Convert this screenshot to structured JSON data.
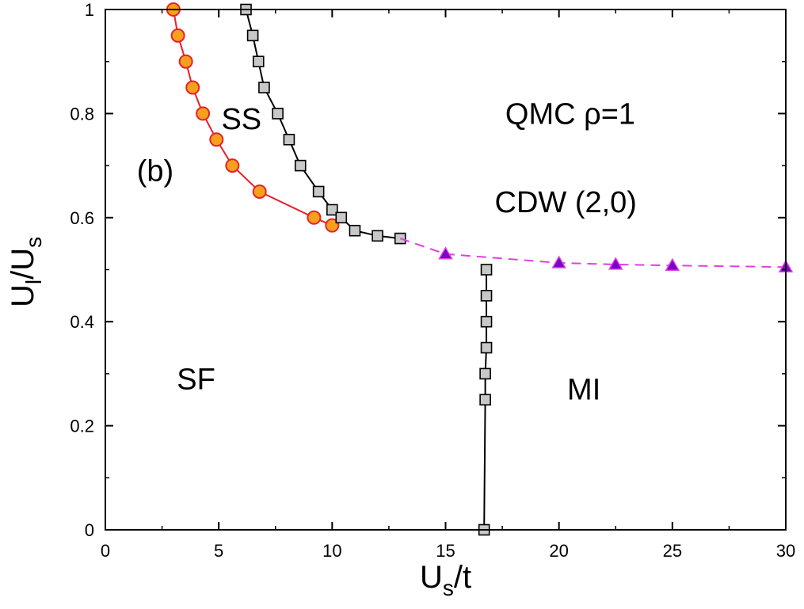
{
  "chart_data": {
    "type": "line",
    "title": "",
    "xlabel": {
      "main": "U",
      "sub": "s",
      "tail": "/t"
    },
    "ylabel": {
      "main": "U",
      "sub": "l",
      "mid": "/U",
      "sub2": "s"
    },
    "xlim": [
      0,
      30
    ],
    "ylim": [
      0,
      1
    ],
    "x_ticks": [
      0,
      5,
      10,
      15,
      20,
      25,
      30
    ],
    "y_ticks": [
      0,
      0.2,
      0.4,
      0.6,
      0.8,
      1
    ],
    "x_tick_labels": [
      "0",
      "5",
      "10",
      "15",
      "20",
      "25",
      "30"
    ],
    "y_tick_labels": [
      "0",
      "0.2",
      "0.4",
      "0.6",
      "0.8",
      "1"
    ],
    "grid": false,
    "annotations": [
      {
        "text": "QMC ρ=1",
        "x": 20.5,
        "y": 0.8
      },
      {
        "text": "CDW (2,0)",
        "x": 20.3,
        "y": 0.63
      },
      {
        "text": "SS",
        "x": 6.0,
        "y": 0.79
      },
      {
        "text": "(b)",
        "x": 2.2,
        "y": 0.69
      },
      {
        "text": "SF",
        "x": 4.0,
        "y": 0.29
      },
      {
        "text": "MI",
        "x": 21.1,
        "y": 0.27
      }
    ],
    "series": [
      {
        "style": "red-line-orange-circles",
        "line_color": "#e8202a",
        "marker_fill": "#f5a11c",
        "marker": "circle",
        "dash": false,
        "x": [
          3.0,
          3.2,
          3.55,
          3.85,
          4.3,
          4.9,
          5.6,
          6.8,
          9.2,
          10.0
        ],
        "y": [
          1.0,
          0.95,
          0.9,
          0.85,
          0.8,
          0.75,
          0.7,
          0.65,
          0.6,
          0.585
        ]
      },
      {
        "style": "black-line-gray-squares",
        "line_color": "#000000",
        "marker_fill": "#c8c8c8",
        "marker": "square",
        "dash": false,
        "x": [
          6.2,
          6.5,
          6.75,
          7.0,
          7.6,
          8.1,
          8.6,
          9.4,
          10.0,
          10.4,
          11.0,
          12.0,
          13.0
        ],
        "y": [
          1.0,
          0.95,
          0.9,
          0.85,
          0.8,
          0.75,
          0.7,
          0.65,
          0.615,
          0.6,
          0.575,
          0.565,
          0.56
        ]
      },
      {
        "style": "magenta-dashed-triangles",
        "line_color": "#e040e0",
        "marker_fill": "#7a00cc",
        "marker": "triangle",
        "dash": true,
        "x": [
          13.0,
          15.0,
          20.0,
          22.5,
          25.0,
          30.0
        ],
        "y": [
          0.56,
          0.53,
          0.513,
          0.51,
          0.508,
          0.505
        ]
      },
      {
        "style": "black-line-gray-squares-vertical",
        "line_color": "#000000",
        "marker_fill": "#c8c8c8",
        "marker": "square",
        "dash": false,
        "x": [
          16.7,
          16.75,
          16.75,
          16.8,
          16.8,
          16.8,
          16.8
        ],
        "y": [
          0.0,
          0.25,
          0.3,
          0.35,
          0.4,
          0.45,
          0.5
        ]
      }
    ]
  }
}
